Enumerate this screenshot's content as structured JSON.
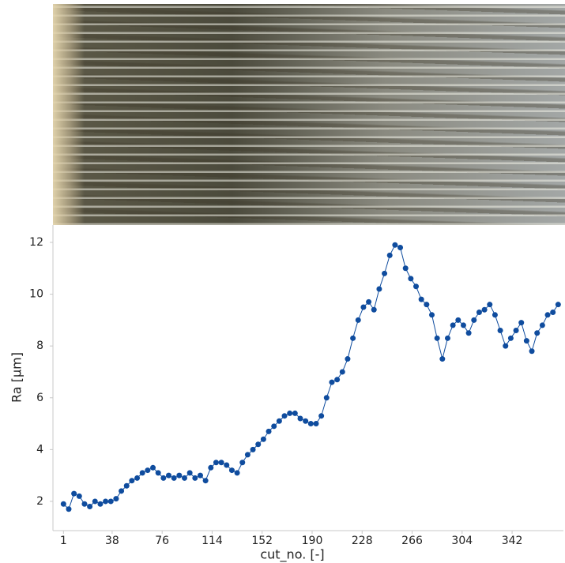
{
  "chart_data": {
    "type": "line",
    "markers": true,
    "color": "#0f4c9e",
    "xlabel": "cut_no. [-]",
    "ylabel": "Ra [µm]",
    "x": [
      1,
      5,
      9,
      13,
      17,
      21,
      25,
      29,
      33,
      37,
      41,
      45,
      49,
      53,
      57,
      61,
      65,
      69,
      73,
      77,
      81,
      85,
      89,
      93,
      97,
      101,
      105,
      109,
      113,
      117,
      121,
      125,
      129,
      133,
      137,
      141,
      145,
      149,
      153,
      157,
      161,
      165,
      169,
      173,
      177,
      181,
      185,
      189,
      193,
      197,
      201,
      205,
      209,
      213,
      217,
      221,
      225,
      229,
      233,
      237,
      241,
      245,
      249,
      253,
      257,
      261,
      265,
      269,
      273,
      277,
      281,
      285,
      289,
      293,
      297,
      301,
      305,
      309,
      313,
      317,
      321,
      325,
      329,
      333,
      337,
      341,
      345,
      349,
      353,
      357,
      361,
      365,
      369,
      373,
      377
    ],
    "values": [
      1.9,
      1.7,
      2.3,
      2.2,
      1.9,
      1.8,
      2.0,
      1.9,
      2.0,
      2.0,
      2.1,
      2.4,
      2.6,
      2.8,
      2.9,
      3.1,
      3.2,
      3.3,
      3.1,
      2.9,
      3.0,
      2.9,
      3.0,
      2.9,
      3.1,
      2.9,
      3.0,
      2.8,
      3.3,
      3.5,
      3.5,
      3.4,
      3.2,
      3.1,
      3.5,
      3.8,
      4.0,
      4.2,
      4.4,
      4.7,
      4.9,
      5.1,
      5.3,
      5.4,
      5.4,
      5.2,
      5.1,
      5.0,
      5.0,
      5.3,
      6.0,
      6.6,
      6.7,
      7.0,
      7.5,
      8.3,
      9.0,
      9.5,
      9.7,
      9.4,
      10.2,
      10.8,
      11.5,
      11.9,
      11.8,
      11.0,
      10.6,
      10.3,
      9.8,
      9.6,
      9.2,
      8.3,
      7.5,
      8.3,
      8.8,
      9.0,
      8.8,
      8.5,
      9.0,
      9.3,
      9.4,
      9.6,
      9.2,
      8.6,
      8.0,
      8.3,
      8.6,
      8.9,
      8.2,
      7.8,
      8.5,
      8.8,
      9.2,
      9.3,
      9.6
    ],
    "xlim": [
      -7,
      381
    ],
    "xticks": [
      1,
      38,
      76,
      114,
      152,
      190,
      228,
      266,
      304,
      342
    ],
    "ylim": [
      0.87,
      12.67
    ],
    "yticks": [
      2,
      4,
      6,
      8,
      10,
      12
    ]
  }
}
